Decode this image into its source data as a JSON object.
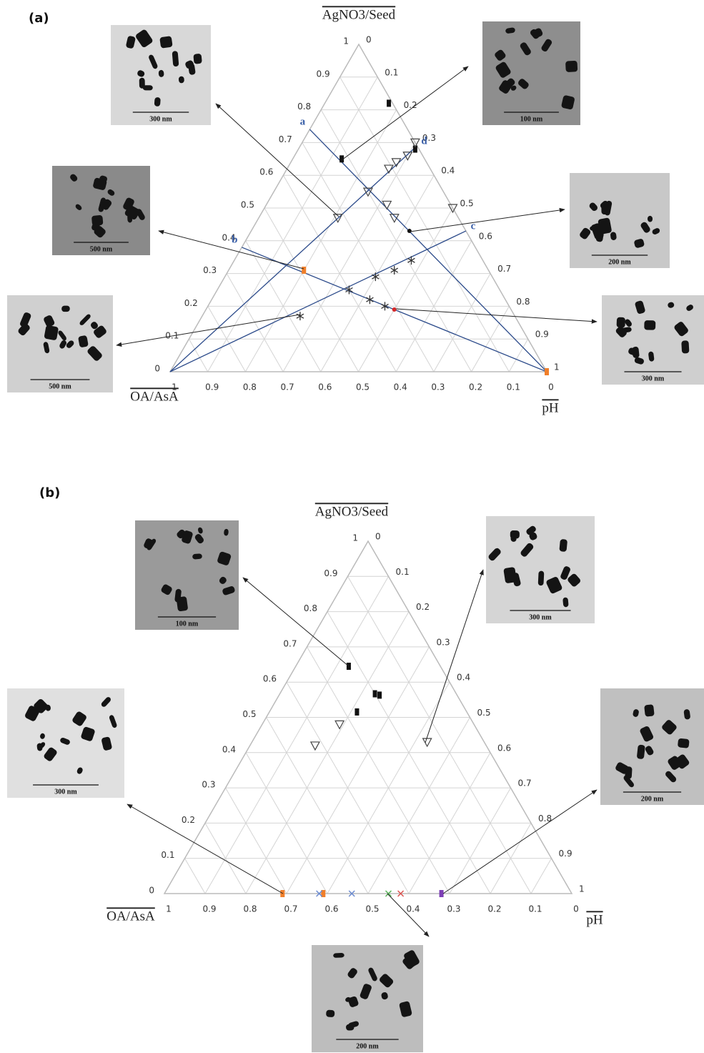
{
  "chart_data": [
    {
      "type": "ternary",
      "panel": "(a)",
      "top_label": "AgNO3/Seed",
      "left_label": "OA/AsA",
      "right_label": "pH",
      "ticks": [
        0,
        0.1,
        0.2,
        0.3,
        0.4,
        0.5,
        0.6,
        0.7,
        0.8,
        0.9,
        1
      ],
      "grid": true,
      "series": [
        {
          "marker": "square",
          "color": "#111111",
          "agno3_seed": [
            0.82,
            0.65,
            0.68
          ],
          "oa_asa": [
            0.01,
            0.22,
            0.01
          ],
          "ph": [
            0.17,
            0.13,
            0.31
          ]
        },
        {
          "marker": "dot",
          "color": "#111111",
          "agno3_seed": [
            0.43
          ],
          "oa_asa": [
            0.15
          ],
          "ph": [
            0.42
          ]
        },
        {
          "marker": "triangle",
          "color": "#444444",
          "agno3_seed": [
            0.7,
            0.66,
            0.64,
            0.62,
            0.55,
            0.51,
            0.47,
            0.5,
            0.47
          ],
          "oa_asa": [
            0,
            0.04,
            0.08,
            0.11,
            0.2,
            0.17,
            0.17,
            0,
            0.32
          ],
          "ph": [
            0.3,
            0.3,
            0.28,
            0.27,
            0.25,
            0.32,
            0.36,
            0.5,
            0.21
          ]
        },
        {
          "marker": "asterisk",
          "color": "#333333",
          "agno3_seed": [
            0.34,
            0.31,
            0.29,
            0.25,
            0.22,
            0.2,
            0.17
          ],
          "oa_asa": [
            0.19,
            0.25,
            0.31,
            0.4,
            0.36,
            0.33,
            0.57
          ],
          "ph": [
            0.47,
            0.44,
            0.4,
            0.35,
            0.42,
            0.47,
            0.26
          ]
        },
        {
          "marker": "square",
          "color": "#f07f2a",
          "agno3_seed": [
            0.31,
            0
          ],
          "oa_asa": [
            0.49,
            0
          ],
          "ph": [
            0.2,
            1
          ]
        },
        {
          "marker": "dot",
          "color": "#d62728",
          "agno3_seed": [
            0.19
          ],
          "oa_asa": [
            0.31
          ],
          "ph": [
            0.5
          ]
        }
      ],
      "lines": [
        {
          "label": "a",
          "agno3_seed": [
            0.74,
            0
          ],
          "oa_asa": [
            0.26,
            0
          ],
          "ph": [
            0,
            1
          ]
        },
        {
          "label": "b",
          "agno3_seed": [
            0.38,
            0
          ],
          "oa_asa": [
            0.62,
            0
          ],
          "ph": [
            0,
            1
          ]
        },
        {
          "label": "c",
          "agno3_seed": [
            0,
            0.43
          ],
          "oa_asa": [
            1,
            0
          ],
          "ph": [
            0,
            0.57
          ]
        },
        {
          "label": "d",
          "agno3_seed": [
            0,
            0.69
          ],
          "oa_asa": [
            1,
            0
          ],
          "ph": [
            0,
            0.31
          ]
        }
      ],
      "insets": [
        {
          "scale": "300 nm"
        },
        {
          "scale": "100 nm"
        },
        {
          "scale": "500 nm"
        },
        {
          "scale": "200 nm"
        },
        {
          "scale": "500 nm"
        },
        {
          "scale": "300 nm"
        }
      ]
    },
    {
      "type": "ternary",
      "panel": "(b)",
      "top_label": "AgNO3/Seed",
      "left_label": "OA/AsA",
      "right_label": "pH",
      "ticks": [
        0,
        0.1,
        0.2,
        0.3,
        0.4,
        0.5,
        0.6,
        0.7,
        0.8,
        0.9,
        1
      ],
      "grid": true,
      "series": [
        {
          "marker": "square",
          "color": "#111111",
          "agno3_seed": [
            0.645,
            0.572,
            0.558,
            0.523
          ],
          "oa_asa": [
            0.225,
            0.2,
            0.19,
            0.27
          ],
          "ph": [
            0.13,
            0.23,
            0.25,
            0.21
          ]
        },
        {
          "marker": "triangle",
          "color": "#444444",
          "agno3_seed": [
            0.48,
            0.42,
            0.43
          ],
          "oa_asa": [
            0.33,
            0.42,
            0.14
          ],
          "ph": [
            0.19,
            0.16,
            0.43
          ]
        },
        {
          "marker": "square",
          "color": "#f07f2a",
          "agno3_seed": [
            0,
            0
          ],
          "oa_asa": [
            0.71,
            0.61
          ],
          "ph": [
            0.29,
            0.39
          ]
        },
        {
          "marker": "cross",
          "color": "#6a8ad0",
          "agno3_seed": [
            0,
            0
          ],
          "oa_asa": [
            0.62,
            0.54
          ],
          "ph": [
            0.38,
            0.46
          ]
        },
        {
          "marker": "cross",
          "color": "#59b45a",
          "agno3_seed": [
            0
          ],
          "oa_asa": [
            0.45
          ],
          "ph": [
            0.55
          ]
        },
        {
          "marker": "cross",
          "color": "#d9534f",
          "agno3_seed": [
            0
          ],
          "oa_asa": [
            0.42
          ],
          "ph": [
            0.58
          ]
        },
        {
          "marker": "square",
          "color": "#7d3fb5",
          "agno3_seed": [
            0
          ],
          "oa_asa": [
            0.32
          ],
          "ph": [
            0.68
          ]
        }
      ],
      "lines": [],
      "insets": [
        {
          "scale": "100 nm"
        },
        {
          "scale": "300 nm"
        },
        {
          "scale": "300 nm"
        },
        {
          "scale": "200 nm"
        },
        {
          "scale": "200 nm"
        }
      ]
    }
  ]
}
